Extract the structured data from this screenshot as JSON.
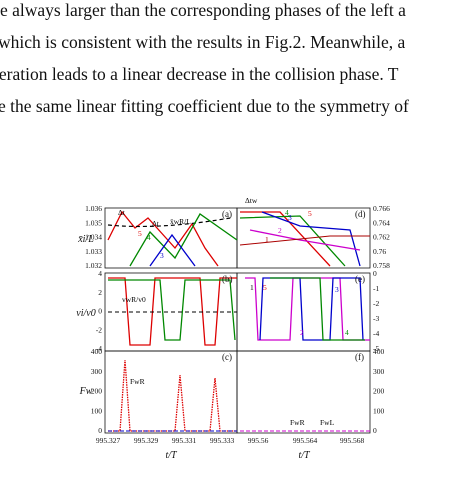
{
  "text": {
    "lines": [
      "e always larger than the corresponding phases of the left a",
      "which is consistent with the results in Fig.2. Meanwhile, a",
      "leration leads to a linear decrease in the collision phase. T",
      "e the same linear fitting coefficient due to the symmetry of"
    ]
  },
  "figure": {
    "panel_labels": [
      "(a)",
      "(b)",
      "(c)",
      "(d)",
      "(e)",
      "(f)"
    ],
    "left_ticks": {
      "a": [
        "1.036",
        "1.035",
        "1.034",
        "1.033",
        "1.032"
      ],
      "b": [
        "4",
        "2",
        "0",
        "-2",
        "-4"
      ],
      "c": [
        "400",
        "300",
        "200",
        "100",
        "0"
      ]
    },
    "right_ticks": {
      "d": [
        "0.766",
        "0.764",
        "0.762",
        "0.76",
        "0.758"
      ],
      "e": [
        "0",
        "-1",
        "-2",
        "-3",
        "-4",
        "-5"
      ],
      "f": [
        "400",
        "300",
        "200",
        "100",
        "0"
      ]
    },
    "x_ticks_left": [
      "995.327",
      "995.329",
      "995.331",
      "995.333"
    ],
    "x_ticks_right": [
      "995.56",
      "995.564",
      "995.568"
    ],
    "x_label": "t/T",
    "y_label_a": "x̄i/L",
    "y_label_b": "vi/v0",
    "y_label_c": "Fw",
    "annotations": [
      "x̄wR/L",
      "Δt",
      "Δt",
      "vwR/v0",
      "FwR",
      "FwR",
      "FwL",
      "Δtw",
      "1",
      "2",
      "3",
      "4",
      "5",
      "3",
      "4",
      "5",
      "1",
      "2",
      "3",
      "4",
      "5"
    ]
  }
}
